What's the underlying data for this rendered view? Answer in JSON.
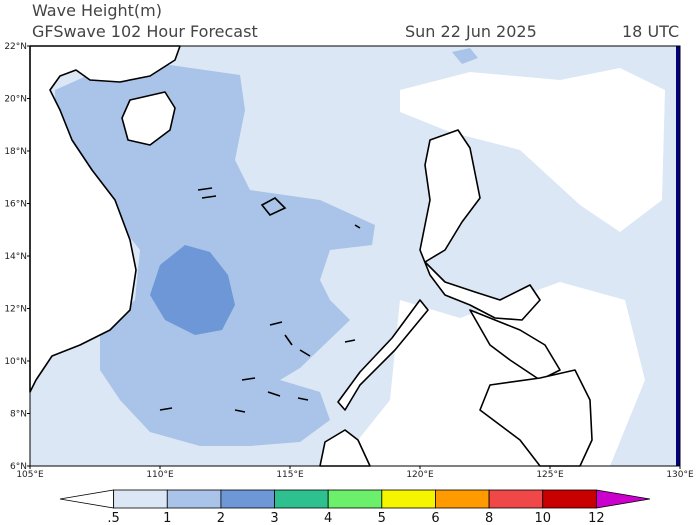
{
  "header": {
    "title": "Wave Height(m)",
    "subtitle": "GFSwave 102 Hour Forecast",
    "date": "Sun 22 Jun 2025",
    "time": "18 UTC"
  },
  "map": {
    "lat_labels": [
      "22°N",
      "20°N",
      "18°N",
      "16°N",
      "14°N",
      "12°N",
      "10°N",
      "8°N",
      "6°N"
    ],
    "lon_labels": [
      "105°E",
      "110°E",
      "115°E",
      "120°E",
      "125°E",
      "130°E"
    ]
  },
  "colorbar": {
    "labels": [
      ".5",
      "1",
      "2",
      "3",
      "4",
      "5",
      "6",
      "8",
      "10",
      "12"
    ],
    "colors": [
      "#ffffff",
      "#dbe7f5",
      "#a9c4e8",
      "#6d97d6",
      "#2ec08e",
      "#6cf06c",
      "#f5f500",
      "#ff9a00",
      "#f04848",
      "#c80000",
      "#cc00cc"
    ]
  }
}
